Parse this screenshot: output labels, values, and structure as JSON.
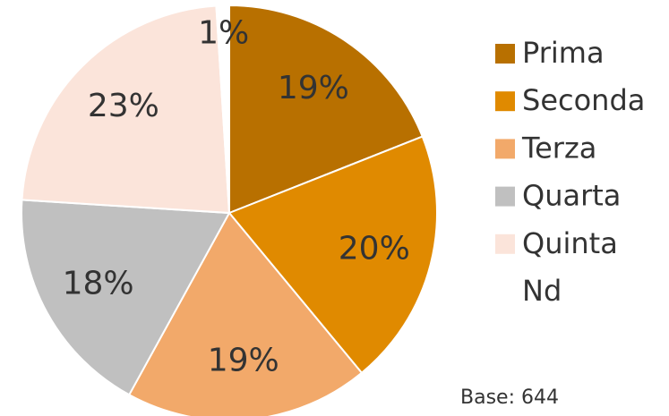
{
  "chart_data": {
    "type": "pie",
    "categories": [
      "Prima",
      "Seconda",
      "Terza",
      "Quarta",
      "Quinta",
      "Nd"
    ],
    "values": [
      19,
      20,
      19,
      18,
      23,
      1
    ],
    "value_labels": [
      "19%",
      "20%",
      "19%",
      "18%",
      "23%",
      "1%"
    ],
    "colors": [
      "#b87000",
      "#e08a00",
      "#f2a96a",
      "#c0c0c0",
      "#fbe4da",
      "#ffffff"
    ],
    "legend": "right",
    "note": "Base: 644"
  }
}
